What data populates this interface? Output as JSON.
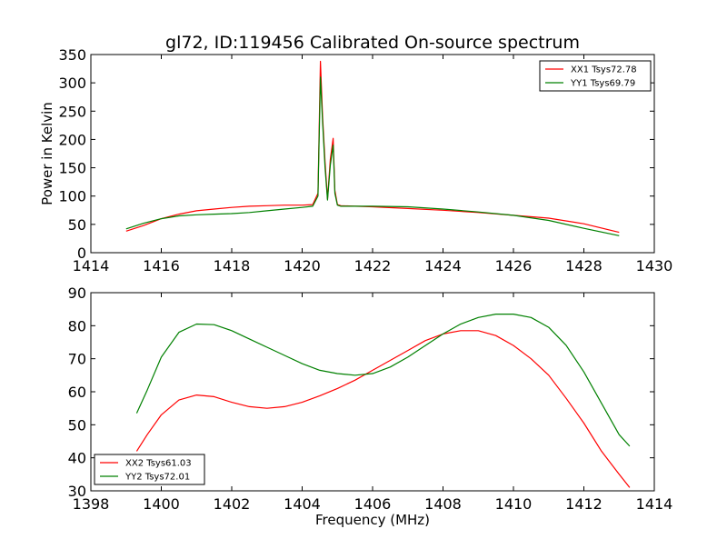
{
  "title": "gl72, ID:119456 Calibrated On-source spectrum",
  "colors": {
    "xx": "#ff0000",
    "yy": "#008000"
  },
  "chart_data": [
    {
      "type": "line",
      "xlim": [
        1414,
        1430
      ],
      "ylim": [
        0,
        350
      ],
      "xticks": [
        1414,
        1416,
        1418,
        1420,
        1422,
        1424,
        1426,
        1428,
        1430
      ],
      "yticks": [
        0,
        50,
        100,
        150,
        200,
        250,
        300,
        350
      ],
      "xlabel": "",
      "ylabel": "Power in Kelvin",
      "legend_position": "top-right",
      "series": [
        {
          "name": "XX1 Tsys72.78",
          "color": "#ff0000",
          "x": [
            1415.0,
            1415.5,
            1416.0,
            1416.5,
            1417.0,
            1417.5,
            1418.0,
            1418.5,
            1419.0,
            1419.5,
            1420.0,
            1420.3,
            1420.45,
            1420.52,
            1420.58,
            1420.65,
            1420.72,
            1420.8,
            1420.88,
            1420.93,
            1421.0,
            1421.1,
            1421.5,
            1422.0,
            1423.0,
            1424.0,
            1425.0,
            1426.0,
            1427.0,
            1428.0,
            1429.0
          ],
          "y": [
            38,
            48,
            60,
            68,
            74,
            77,
            80,
            82,
            83,
            84,
            84,
            85,
            105,
            338,
            240,
            160,
            95,
            165,
            202,
            110,
            85,
            83,
            82,
            81,
            78,
            75,
            71,
            66,
            61,
            51,
            36
          ]
        },
        {
          "name": "YY1 Tsys69.79",
          "color": "#008000",
          "x": [
            1415.0,
            1415.5,
            1416.0,
            1416.5,
            1417.0,
            1417.5,
            1418.0,
            1418.5,
            1419.0,
            1419.5,
            1420.0,
            1420.3,
            1420.45,
            1420.52,
            1420.58,
            1420.65,
            1420.72,
            1420.8,
            1420.88,
            1420.93,
            1421.0,
            1421.1,
            1421.5,
            1422.0,
            1423.0,
            1424.0,
            1425.0,
            1426.0,
            1427.0,
            1428.0,
            1429.0
          ],
          "y": [
            42,
            52,
            60,
            65,
            67,
            68,
            69,
            71,
            74,
            77,
            80,
            82,
            100,
            310,
            230,
            150,
            93,
            155,
            190,
            105,
            84,
            82,
            82,
            82,
            81,
            77,
            72,
            66,
            57,
            43,
            30
          ]
        }
      ]
    },
    {
      "type": "line",
      "xlim": [
        1398,
        1414
      ],
      "ylim": [
        30,
        90
      ],
      "xticks": [
        1398,
        1400,
        1402,
        1404,
        1406,
        1408,
        1410,
        1412,
        1414
      ],
      "yticks": [
        30,
        40,
        50,
        60,
        70,
        80,
        90
      ],
      "xlabel": "Frequency (MHz)",
      "ylabel": "",
      "legend_position": "bottom-left",
      "series": [
        {
          "name": "XX2 Tsys61.03",
          "color": "#ff0000",
          "x": [
            1399.3,
            1399.6,
            1400.0,
            1400.5,
            1401.0,
            1401.5,
            1402.0,
            1402.5,
            1403.0,
            1403.5,
            1404.0,
            1404.5,
            1405.0,
            1405.5,
            1406.0,
            1406.5,
            1407.0,
            1407.5,
            1408.0,
            1408.5,
            1409.0,
            1409.5,
            1410.0,
            1410.5,
            1411.0,
            1411.5,
            1412.0,
            1412.5,
            1413.0,
            1413.3
          ],
          "y": [
            42,
            47,
            53,
            57.5,
            59,
            58.5,
            56.8,
            55.5,
            55,
            55.5,
            56.8,
            58.8,
            61,
            63.5,
            66.5,
            69.5,
            72.5,
            75.5,
            77.5,
            78.5,
            78.5,
            77,
            74,
            70,
            65,
            58,
            50.5,
            42,
            35,
            31
          ]
        },
        {
          "name": "YY2 Tsys72.01",
          "color": "#008000",
          "x": [
            1399.3,
            1399.6,
            1400.0,
            1400.5,
            1401.0,
            1401.5,
            1402.0,
            1402.5,
            1403.0,
            1403.5,
            1404.0,
            1404.5,
            1405.0,
            1405.5,
            1406.0,
            1406.5,
            1407.0,
            1407.5,
            1408.0,
            1408.5,
            1409.0,
            1409.5,
            1410.0,
            1410.5,
            1411.0,
            1411.5,
            1412.0,
            1412.5,
            1413.0,
            1413.3
          ],
          "y": [
            53.5,
            60.5,
            70.5,
            78,
            80.5,
            80.3,
            78.5,
            76,
            73.5,
            71,
            68.5,
            66.5,
            65.5,
            65,
            65.5,
            67.5,
            70.5,
            74,
            77.5,
            80.5,
            82.5,
            83.5,
            83.5,
            82.5,
            79.5,
            74,
            66,
            56.5,
            47,
            43.5
          ]
        }
      ]
    }
  ]
}
